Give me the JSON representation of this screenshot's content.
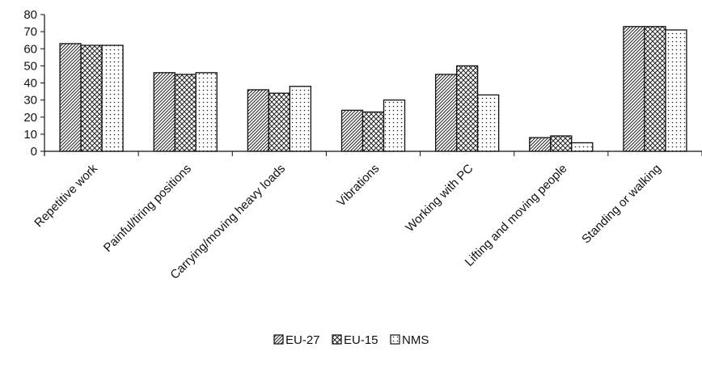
{
  "chart_data": {
    "type": "bar",
    "categories": [
      "Repetitive work",
      "Painful/tiring positions",
      "Carrying/moving heavy loads",
      "Vibrations",
      "Working with PC",
      "Lifting and moving people",
      "Standing or walking"
    ],
    "series": [
      {
        "name": "EU-27",
        "pattern": "diagonal-hatch",
        "values": [
          63,
          46,
          36,
          24,
          45,
          8,
          73
        ]
      },
      {
        "name": "EU-15",
        "pattern": "cross-hatch",
        "values": [
          62,
          45,
          34,
          23,
          50,
          9,
          73
        ]
      },
      {
        "name": "NMS",
        "pattern": "dots",
        "values": [
          62,
          46,
          38,
          30,
          33,
          5,
          71
        ]
      }
    ],
    "yticks": [
      "0",
      "10",
      "20",
      "30",
      "40",
      "50",
      "60",
      "70",
      "80"
    ],
    "ylim": [
      0,
      80
    ],
    "grid": false,
    "legend_position": "bottom-center",
    "colors": {
      "bar_fill": "#ffffff",
      "bar_stroke": "#111111",
      "pattern": "#222222"
    }
  }
}
